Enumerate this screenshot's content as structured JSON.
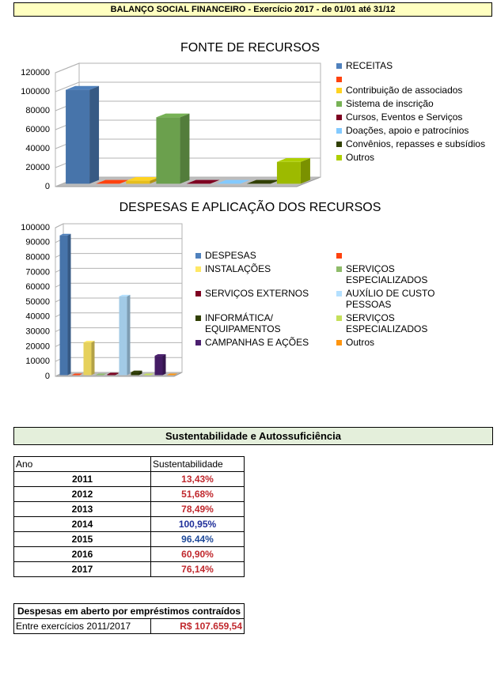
{
  "header": {
    "title": "BALANÇO SOCIAL FINANCEIRO - Exercício 2017  - de 01/01 até 31/12"
  },
  "chart_data": [
    {
      "type": "bar",
      "title": "FONTE DE RECURSOS",
      "ylim": [
        0,
        120000
      ],
      "yticks": [
        0,
        20000,
        40000,
        60000,
        80000,
        100000,
        120000
      ],
      "grid": true,
      "series": [
        {
          "name": "RECEITAS",
          "color": "#4f81bd",
          "values": [
            99000
          ]
        },
        {
          "name": null,
          "color": "#ff420e",
          "values": [
            0
          ]
        },
        {
          "name": "Contribuição de associados",
          "color": "#ffd320",
          "values": [
            3000
          ]
        },
        {
          "name": "Sistema de inscrição",
          "color": "#77b255",
          "values": [
            70000
          ]
        },
        {
          "name": "Cursos, Eventos e Serviços",
          "color": "#7e0021",
          "values": [
            0
          ]
        },
        {
          "name": "Doações, apoio e patrocínios",
          "color": "#83caff",
          "values": [
            0
          ]
        },
        {
          "name": "Convênios, repasses e subsídios",
          "color": "#314004",
          "values": [
            0
          ]
        },
        {
          "name": "Outros",
          "color": "#aecf00",
          "values": [
            23000
          ]
        }
      ]
    },
    {
      "type": "bar",
      "title": "DESPESAS E APLICAÇÃO DOS RECURSOS",
      "ylim": [
        0,
        100000
      ],
      "yticks": [
        0,
        10000,
        20000,
        30000,
        40000,
        50000,
        60000,
        70000,
        80000,
        90000,
        100000
      ],
      "grid": true,
      "series": [
        {
          "name": "DESPESAS",
          "color": "#4f81bd",
          "values": [
            94000
          ]
        },
        {
          "name": null,
          "color": "#ff420e",
          "values": [
            0
          ]
        },
        {
          "name": "INSTALAÇÕES",
          "color": "#ffe866",
          "values": [
            22000
          ]
        },
        {
          "name": "SERVIÇOS ESPECIALIZADOS",
          "color": "#8fbc6a",
          "values": [
            0
          ]
        },
        {
          "name": "SERVIÇOS EXTERNOS",
          "color": "#7e0021",
          "values": [
            500
          ]
        },
        {
          "name": "AUXÍLIO DE CUSTO PESSOAS",
          "color": "#b4e0ff",
          "values": [
            53000
          ]
        },
        {
          "name": "INFORMÁTICA/ EQUIPAMENTOS",
          "color": "#314004",
          "values": [
            2000
          ]
        },
        {
          "name": "SERVIÇOS ESPECIALIZADOS",
          "color": "#c5e05a",
          "values": [
            0
          ]
        },
        {
          "name": "CAMPANHAS E AÇÕES",
          "color": "#4b1f6f",
          "values": [
            13000
          ]
        },
        {
          "name": "Outros",
          "color": "#ff950e",
          "values": [
            0
          ]
        }
      ]
    }
  ],
  "sustainability": {
    "title": "Sustentabilidade e Autossuficiência",
    "columns": [
      "Ano",
      "Sustentabilidade"
    ],
    "rows": [
      {
        "year": "2011",
        "value": "13,43%",
        "color": "#c0282d"
      },
      {
        "year": "2012",
        "value": "51,68%",
        "color": "#c0282d"
      },
      {
        "year": "2013",
        "value": "78,49%",
        "color": "#c0282d"
      },
      {
        "year": "2014",
        "value": "100,95%",
        "color": "#1f2f9a"
      },
      {
        "year": "2015",
        "value": "96.44%",
        "color": "#1f4a9a"
      },
      {
        "year": "2016",
        "value": "60,90%",
        "color": "#c0282d"
      },
      {
        "year": "2017",
        "value": "76,14%",
        "color": "#c0282d"
      }
    ]
  },
  "loans": {
    "title": "Despesas em aberto por empréstimos contraídos",
    "label": "Entre exercícios 2011/2017",
    "value": "R$ 107.659,54",
    "color": "#c0282d"
  }
}
